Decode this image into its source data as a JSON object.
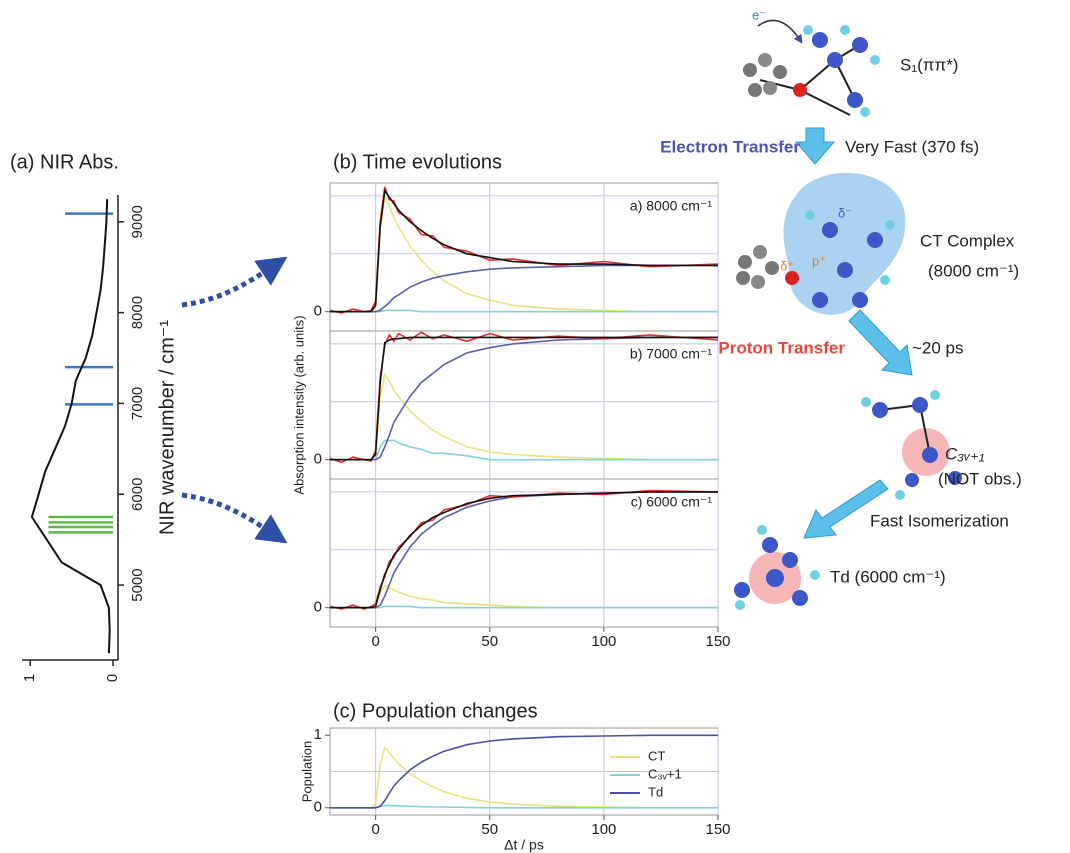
{
  "chart_data": [
    {
      "type": "line",
      "title": "(a) NIR Abs.",
      "x_label": "NIR wavenumber / cm⁻¹",
      "x": [
        4250,
        4500,
        4750,
        5000,
        5250,
        5500,
        5750,
        6000,
        6250,
        6500,
        6750,
        7000,
        7250,
        7500,
        7750,
        8000,
        8250,
        8500,
        8750,
        9000,
        9250
      ],
      "values": [
        0.05,
        0.04,
        0.05,
        0.15,
        0.62,
        0.8,
        0.98,
        0.9,
        0.82,
        0.7,
        0.58,
        0.5,
        0.45,
        0.33,
        0.25,
        0.2,
        0.15,
        0.12,
        0.1,
        0.08,
        0.07
      ],
      "color": "#111111",
      "xlim": [
        4175,
        9295
      ],
      "xticks": [
        5000,
        6000,
        7000,
        8000,
        9000
      ],
      "ylim": [
        1.1,
        -0.06
      ],
      "yticks": [
        1,
        0
      ],
      "sticks": [
        {
          "color": "#3a78c8",
          "positions": [
            9090,
            7400,
            6990
          ],
          "heights": [
            0.58,
            0.58,
            0.58
          ]
        },
        {
          "color": "#5cb84a",
          "positions": [
            5750,
            5690,
            5640,
            5580
          ],
          "heights": [
            0.78,
            0.78,
            0.78,
            0.78
          ]
        }
      ]
    },
    {
      "type": "line",
      "title": "(b) Time evolutions",
      "y_label": "Absorption intensity (arb. units)",
      "x": [
        -20,
        -15,
        -10,
        -5,
        -2,
        0,
        2,
        4,
        6,
        8,
        10,
        15,
        20,
        25,
        30,
        40,
        50,
        60,
        80,
        100,
        120,
        150
      ],
      "xlim": [
        -20,
        150
      ],
      "xticks": [
        0,
        50,
        100,
        150
      ],
      "grid": true,
      "panels": [
        {
          "label": "a) 8000 cm⁻¹",
          "ylim": [
            -0.15,
            1
          ],
          "yticks": [
            0
          ],
          "ygrid": [
            0.45,
            0.9
          ],
          "series": [
            {
              "color": "#ece27c",
              "values": [
                0,
                0,
                0,
                0,
                0,
                0.05,
                0.65,
                0.9,
                0.82,
                0.73,
                0.66,
                0.51,
                0.4,
                0.31,
                0.24,
                0.14,
                0.09,
                0.05,
                0.02,
                0.01,
                0,
                0
              ]
            },
            {
              "color": "#7fd3e0",
              "values": [
                0,
                0,
                0,
                0,
                0,
                0,
                0,
                0.01,
                0.01,
                0.01,
                0.01,
                0.01,
                0,
                0,
                0,
                0,
                0,
                0,
                0,
                0,
                0,
                0
              ]
            },
            {
              "color": "#5a5fb0",
              "values": [
                0,
                0,
                0,
                0,
                0,
                0,
                0.01,
                0.04,
                0.07,
                0.11,
                0.13,
                0.19,
                0.23,
                0.26,
                0.28,
                0.31,
                0.33,
                0.34,
                0.35,
                0.36,
                0.36,
                0.36
              ]
            },
            {
              "color": "#e8302a",
              "values": [
                0.01,
                -0.01,
                0.02,
                0,
                0.01,
                0.08,
                0.7,
                0.97,
                0.87,
                0.86,
                0.77,
                0.72,
                0.6,
                0.59,
                0.5,
                0.47,
                0.4,
                0.41,
                0.36,
                0.39,
                0.35,
                0.37
              ]
            },
            {
              "color": "#111111",
              "values": [
                0,
                0,
                0,
                0,
                0,
                0.05,
                0.66,
                0.94,
                0.89,
                0.84,
                0.79,
                0.7,
                0.63,
                0.57,
                0.52,
                0.45,
                0.42,
                0.39,
                0.37,
                0.37,
                0.36,
                0.36
              ]
            }
          ]
        },
        {
          "label": "b) 7000 cm⁻¹",
          "ylim": [
            -0.15,
            1
          ],
          "yticks": [
            0
          ],
          "ygrid": [
            0.45,
            0.9
          ],
          "series": [
            {
              "color": "#ece27c",
              "values": [
                0,
                0,
                0,
                0,
                0,
                0.04,
                0.48,
                0.66,
                0.61,
                0.54,
                0.49,
                0.38,
                0.3,
                0.23,
                0.18,
                0.1,
                0.06,
                0.04,
                0.02,
                0.01,
                0,
                0
              ]
            },
            {
              "color": "#7fd3e0",
              "values": [
                0,
                0,
                0,
                0,
                0,
                0,
                0.1,
                0.15,
                0.15,
                0.15,
                0.13,
                0.1,
                0.08,
                0.05,
                0.05,
                0.03,
                0,
                0,
                0,
                0,
                0,
                0
              ]
            },
            {
              "color": "#5a5fb0",
              "values": [
                0,
                0,
                0,
                0,
                0,
                0,
                0.02,
                0.1,
                0.19,
                0.29,
                0.35,
                0.49,
                0.6,
                0.67,
                0.74,
                0.83,
                0.87,
                0.9,
                0.93,
                0.94,
                0.95,
                0.95
              ]
            },
            {
              "color": "#e8302a",
              "values": [
                0.01,
                -0.02,
                0.02,
                0,
                -0.01,
                0.07,
                0.64,
                0.89,
                0.97,
                0.92,
                0.98,
                0.93,
                0.99,
                0.94,
                0.97,
                0.92,
                0.98,
                0.93,
                0.96,
                0.94,
                0.97,
                0.93
              ]
            },
            {
              "color": "#111111",
              "values": [
                0,
                0,
                0,
                0,
                0,
                0.04,
                0.6,
                0.91,
                0.93,
                0.94,
                0.94,
                0.95,
                0.95,
                0.95,
                0.95,
                0.95,
                0.95,
                0.95,
                0.95,
                0.95,
                0.95,
                0.95
              ]
            }
          ]
        },
        {
          "label": "c) 6000 cm⁻¹",
          "ylim": [
            -0.15,
            1
          ],
          "yticks": [
            0
          ],
          "ygrid": [
            0.45,
            0.9
          ],
          "series": [
            {
              "color": "#ece27c",
              "values": [
                0,
                0,
                0,
                0,
                0,
                0.01,
                0.12,
                0.17,
                0.15,
                0.14,
                0.12,
                0.09,
                0.07,
                0.06,
                0.04,
                0.03,
                0.02,
                0.01,
                0,
                0,
                0,
                0
              ]
            },
            {
              "color": "#7fd3e0",
              "values": [
                0,
                0,
                0,
                0,
                0,
                0,
                0,
                0.01,
                0.01,
                0.01,
                0.01,
                0.01,
                0,
                0,
                0,
                0,
                0,
                0,
                0,
                0,
                0,
                0
              ]
            },
            {
              "color": "#5a5fb0",
              "values": [
                0,
                0,
                0,
                0,
                0,
                0,
                0.02,
                0.09,
                0.18,
                0.27,
                0.33,
                0.47,
                0.57,
                0.64,
                0.7,
                0.78,
                0.83,
                0.86,
                0.88,
                0.89,
                0.9,
                0.9
              ]
            },
            {
              "color": "#e8302a",
              "values": [
                0.01,
                -0.01,
                0.02,
                -0.01,
                0.01,
                0.03,
                0.16,
                0.24,
                0.36,
                0.39,
                0.47,
                0.55,
                0.66,
                0.68,
                0.76,
                0.8,
                0.87,
                0.86,
                0.89,
                0.88,
                0.91,
                0.9
              ]
            },
            {
              "color": "#111111",
              "values": [
                0,
                0,
                0,
                0,
                0,
                0.01,
                0.14,
                0.26,
                0.33,
                0.41,
                0.45,
                0.56,
                0.64,
                0.7,
                0.74,
                0.81,
                0.85,
                0.87,
                0.88,
                0.89,
                0.9,
                0.9
              ]
            }
          ]
        }
      ]
    },
    {
      "type": "line",
      "title": "(c) Population changes",
      "x_label": "Δt / ps",
      "y_label": "Population",
      "x": [
        -20,
        -15,
        -10,
        -5,
        -2,
        0,
        2,
        4,
        6,
        8,
        10,
        15,
        20,
        25,
        30,
        40,
        50,
        60,
        80,
        100,
        120,
        150
      ],
      "xlim": [
        -20,
        150
      ],
      "xticks": [
        0,
        50,
        100,
        150
      ],
      "ylim": [
        -0.1,
        1.1
      ],
      "yticks": [
        0,
        1
      ],
      "ygrid": [
        0.5
      ],
      "grid": true,
      "series": [
        {
          "name": "CT",
          "color": "#ece27c",
          "values": [
            0,
            0,
            0,
            0,
            0,
            0.05,
            0.6,
            0.83,
            0.76,
            0.68,
            0.61,
            0.47,
            0.37,
            0.29,
            0.22,
            0.13,
            0.08,
            0.05,
            0.02,
            0.01,
            0,
            0
          ]
        },
        {
          "name": "C₃ᵥ+1",
          "color": "#7fd3e0",
          "values": [
            0,
            0,
            0,
            0,
            0,
            0,
            0.02,
            0.03,
            0.03,
            0.03,
            0.025,
            0.02,
            0.015,
            0.01,
            0.01,
            0.005,
            0,
            0,
            0,
            0,
            0,
            0
          ]
        },
        {
          "name": "Td",
          "color": "#4c51a8",
          "values": [
            0,
            0,
            0,
            0,
            0,
            0,
            0.02,
            0.1,
            0.2,
            0.3,
            0.37,
            0.52,
            0.63,
            0.71,
            0.78,
            0.87,
            0.92,
            0.95,
            0.98,
            0.99,
            1,
            1
          ]
        }
      ]
    }
  ],
  "diagram": {
    "electron": "e⁻",
    "s1": "S₁(ππ*)",
    "electron_transfer": "Electron Transfer",
    "very_fast": "Very Fast (370 fs)",
    "delta_minus": "δ⁻",
    "delta_plus": "δ⁺",
    "p_plus": "p⁺",
    "ct_complex": "CT Complex",
    "ct_freq": "(8000 cm⁻¹)",
    "proton_transfer": "Proton Transfer",
    "proton_time": "~20 ps",
    "c3v": "C₃ᵥ₊₁",
    "not_obs": "(NOT obs.)",
    "fast_iso": "Fast Isomerization",
    "td": "Td (6000 cm⁻¹)"
  }
}
